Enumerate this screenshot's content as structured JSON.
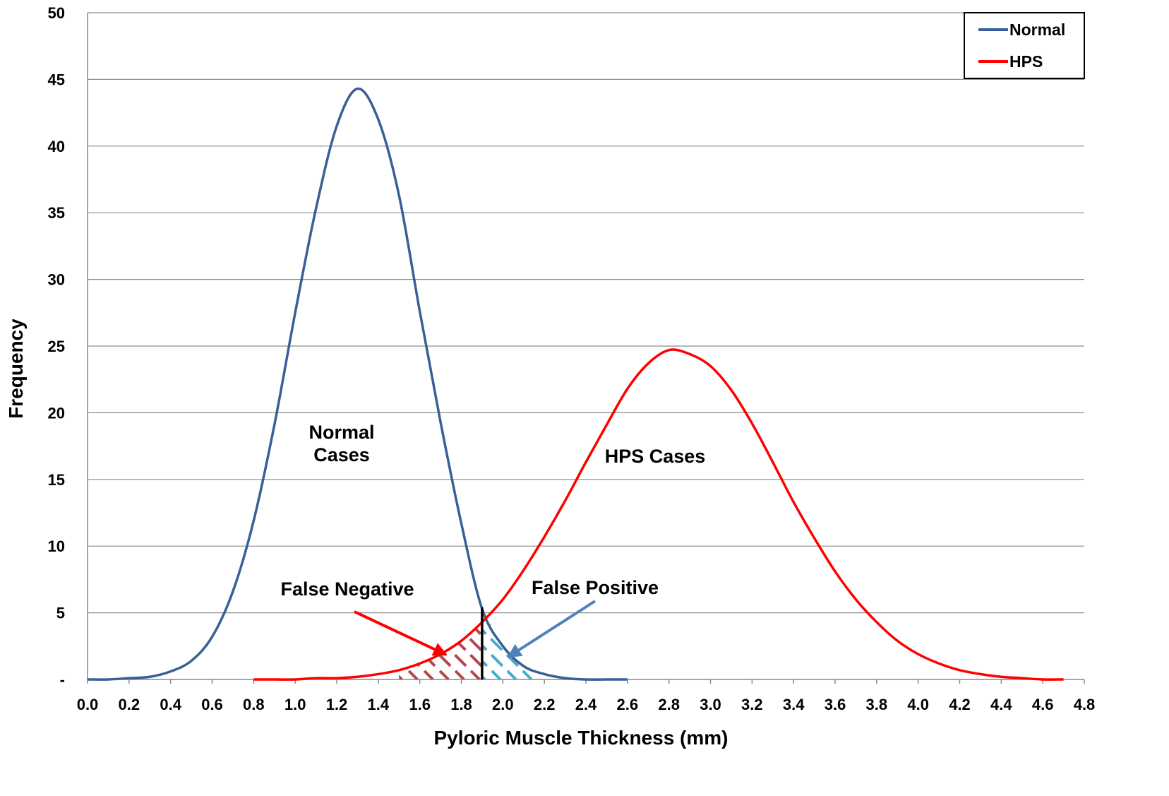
{
  "chart_data": {
    "type": "line",
    "xlabel": "Pyloric Muscle Thickness (mm)",
    "ylabel": "Frequency",
    "xlim": [
      0,
      4.8
    ],
    "ylim": [
      0,
      50
    ],
    "x_ticks": [
      "0.0",
      "0.2",
      "0.4",
      "0.6",
      "0.8",
      "1.0",
      "1.2",
      "1.4",
      "1.6",
      "1.8",
      "2.0",
      "2.2",
      "2.4",
      "2.6",
      "2.8",
      "3.0",
      "3.2",
      "3.4",
      "3.6",
      "3.8",
      "4.0",
      "4.2",
      "4.4",
      "4.6",
      "4.8"
    ],
    "y_ticks": [
      {
        "value": 0,
        "label": "-"
      },
      {
        "value": 5,
        "label": "5"
      },
      {
        "value": 10,
        "label": "10"
      },
      {
        "value": 15,
        "label": "15"
      },
      {
        "value": 20,
        "label": "20"
      },
      {
        "value": 25,
        "label": "25"
      },
      {
        "value": 30,
        "label": "30"
      },
      {
        "value": 35,
        "label": "35"
      },
      {
        "value": 40,
        "label": "40"
      },
      {
        "value": 45,
        "label": "45"
      },
      {
        "value": 50,
        "label": "50"
      }
    ],
    "grid": "horizontal",
    "legend": "top-right",
    "threshold_x": 1.9,
    "series": [
      {
        "name": "Normal",
        "color": "#3a5f96",
        "x": [
          0.0,
          0.1,
          0.2,
          0.3,
          0.4,
          0.5,
          0.6,
          0.7,
          0.8,
          0.9,
          1.0,
          1.1,
          1.2,
          1.3,
          1.4,
          1.5,
          1.6,
          1.7,
          1.8,
          1.9,
          2.0,
          2.1,
          2.2,
          2.3,
          2.4,
          2.5,
          2.6
        ],
        "y": [
          0.0,
          0.0,
          0.1,
          0.2,
          0.6,
          1.4,
          3.2,
          6.6,
          11.9,
          19.1,
          27.5,
          35.3,
          41.5,
          44.3,
          42.0,
          36.3,
          27.6,
          19.3,
          11.7,
          5.3,
          2.5,
          1.0,
          0.4,
          0.1,
          0.0,
          0.0,
          0.0
        ]
      },
      {
        "name": "HPS",
        "color": "#ff0000",
        "x": [
          0.8,
          0.9,
          1.0,
          1.1,
          1.2,
          1.3,
          1.4,
          1.5,
          1.6,
          1.7,
          1.8,
          1.9,
          2.0,
          2.1,
          2.2,
          2.3,
          2.4,
          2.5,
          2.6,
          2.7,
          2.8,
          2.9,
          3.0,
          3.1,
          3.2,
          3.3,
          3.4,
          3.5,
          3.6,
          3.7,
          3.8,
          3.9,
          4.0,
          4.1,
          4.2,
          4.3,
          4.4,
          4.5,
          4.6,
          4.7
        ],
        "y": [
          0.0,
          0.0,
          0.0,
          0.1,
          0.1,
          0.2,
          0.4,
          0.7,
          1.2,
          1.9,
          2.9,
          4.3,
          6.0,
          8.2,
          10.7,
          13.4,
          16.3,
          19.1,
          21.8,
          23.7,
          24.7,
          24.4,
          23.5,
          21.7,
          19.2,
          16.3,
          13.3,
          10.6,
          8.1,
          6.0,
          4.3,
          2.9,
          1.9,
          1.2,
          0.7,
          0.4,
          0.2,
          0.1,
          0.0,
          0.0
        ]
      }
    ],
    "annotations": {
      "normal_cases_line1": "Normal",
      "normal_cases_line2": "Cases",
      "hps_cases": "HPS Cases",
      "false_negative": "False Negative",
      "false_positive": "False Positive"
    },
    "colors": {
      "fn_hatch": "#b5474b",
      "fp_hatch": "#4bacc6",
      "fn_arrow": "#ff0000",
      "fp_arrow": "#4f81bd",
      "threshold_line": "#000000"
    }
  }
}
